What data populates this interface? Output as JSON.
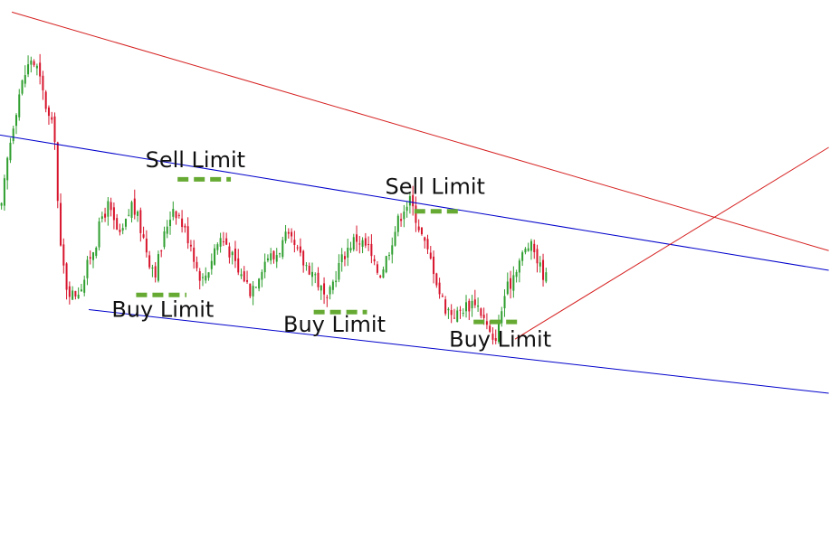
{
  "chart_data": {
    "type": "candlestick",
    "title": "",
    "xlabel": "",
    "ylabel": "",
    "grid": false,
    "colors": {
      "up": "#2e9e2e",
      "down": "#d7142c",
      "channel": "#0000cc",
      "resistance": "#d62020",
      "breakout": "#d62020",
      "limit_marker": "#66aa33"
    },
    "price_series": [
      [
        0,
        75
      ],
      [
        2,
        95
      ],
      [
        4,
        110
      ],
      [
        6,
        122
      ],
      [
        8,
        130
      ],
      [
        10,
        136
      ],
      [
        12,
        132
      ],
      [
        14,
        122
      ],
      [
        16,
        112
      ],
      [
        18,
        105
      ],
      [
        19,
        78
      ],
      [
        20,
        58
      ],
      [
        22,
        44
      ],
      [
        24,
        40
      ],
      [
        26,
        42
      ],
      [
        28,
        47
      ],
      [
        30,
        56
      ],
      [
        32,
        62
      ],
      [
        34,
        72
      ],
      [
        36,
        76
      ],
      [
        38,
        69
      ],
      [
        40,
        63
      ],
      [
        42,
        69
      ],
      [
        44,
        77
      ],
      [
        46,
        71
      ],
      [
        48,
        63
      ],
      [
        50,
        54
      ],
      [
        52,
        50
      ],
      [
        54,
        59
      ],
      [
        56,
        69
      ],
      [
        58,
        76
      ],
      [
        60,
        72
      ],
      [
        62,
        66
      ],
      [
        64,
        61
      ],
      [
        66,
        51
      ],
      [
        68,
        46
      ],
      [
        70,
        51
      ],
      [
        72,
        59
      ],
      [
        74,
        63
      ],
      [
        76,
        61
      ],
      [
        78,
        55
      ],
      [
        80,
        49
      ],
      [
        82,
        47
      ],
      [
        84,
        42
      ],
      [
        86,
        46
      ],
      [
        88,
        52
      ],
      [
        90,
        56
      ],
      [
        92,
        55
      ],
      [
        94,
        59
      ],
      [
        96,
        63
      ],
      [
        98,
        61
      ],
      [
        100,
        57
      ],
      [
        102,
        53
      ],
      [
        104,
        51
      ],
      [
        106,
        48
      ],
      [
        108,
        42
      ],
      [
        110,
        36
      ],
      [
        112,
        45
      ],
      [
        114,
        52
      ],
      [
        116,
        57
      ],
      [
        118,
        61
      ],
      [
        120,
        63
      ],
      [
        122,
        61
      ],
      [
        124,
        59
      ],
      [
        126,
        51
      ],
      [
        128,
        49
      ],
      [
        130,
        55
      ],
      [
        132,
        63
      ],
      [
        134,
        70
      ],
      [
        136,
        76
      ],
      [
        138,
        78
      ],
      [
        140,
        72
      ],
      [
        142,
        64
      ],
      [
        144,
        57
      ],
      [
        146,
        51
      ],
      [
        148,
        41
      ],
      [
        150,
        35
      ],
      [
        152,
        33
      ],
      [
        154,
        32
      ],
      [
        156,
        35
      ],
      [
        158,
        36
      ],
      [
        160,
        38
      ],
      [
        162,
        33
      ],
      [
        164,
        27
      ],
      [
        166,
        20
      ],
      [
        168,
        28
      ],
      [
        170,
        40
      ],
      [
        172,
        45
      ],
      [
        174,
        52
      ],
      [
        176,
        56
      ],
      [
        178,
        60
      ],
      [
        180,
        58
      ],
      [
        182,
        51
      ],
      [
        184,
        47
      ]
    ],
    "channel_upper": [
      [
        0,
        105
      ],
      [
        280,
        50
      ]
    ],
    "channel_lower": [
      [
        30,
        34
      ],
      [
        280,
        0
      ]
    ],
    "resistance_line": [
      [
        4,
        155
      ],
      [
        280,
        58
      ]
    ],
    "breakout_line": [
      [
        174,
        22
      ],
      [
        280,
        100
      ]
    ],
    "limit_orders": [
      {
        "type": "Sell Limit",
        "x": [
          60,
          78
        ],
        "y": 87
      },
      {
        "type": "Buy Limit",
        "x": [
          46,
          63
        ],
        "y": 40
      },
      {
        "type": "Sell Limit",
        "x": [
          140,
          156
        ],
        "y": 74
      },
      {
        "type": "Buy Limit",
        "x": [
          106,
          124
        ],
        "y": 33
      },
      {
        "type": "Buy Limit",
        "x": [
          160,
          176
        ],
        "y": 29
      }
    ],
    "annotations": [
      {
        "text": "Sell Limit",
        "x": 66,
        "y": 92
      },
      {
        "text": "Buy Limit",
        "x": 55,
        "y": 31
      },
      {
        "text": "Sell Limit",
        "x": 147,
        "y": 81
      },
      {
        "text": "Buy Limit",
        "x": 113,
        "y": 25
      },
      {
        "text": "Buy Limit",
        "x": 169,
        "y": 19
      }
    ]
  }
}
